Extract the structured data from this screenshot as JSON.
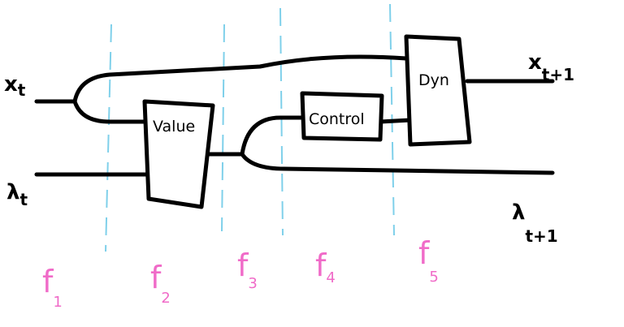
{
  "inputs": [
    {
      "symbol": "x",
      "subscript": "t"
    },
    {
      "symbol": "λ",
      "subscript": "t"
    }
  ],
  "outputs": [
    {
      "symbol": "x",
      "subscript": "t+1"
    },
    {
      "symbol": "λ",
      "subscript": "t+1"
    }
  ],
  "nodes": [
    {
      "label": "Value"
    },
    {
      "label": "Control"
    },
    {
      "label": "Dyn"
    }
  ],
  "stages": [
    {
      "letter": "f",
      "subscript": "1"
    },
    {
      "letter": "f",
      "subscript": "2"
    },
    {
      "letter": "f",
      "subscript": "3"
    },
    {
      "letter": "f",
      "subscript": "4"
    },
    {
      "letter": "f",
      "subscript": "5"
    }
  ]
}
